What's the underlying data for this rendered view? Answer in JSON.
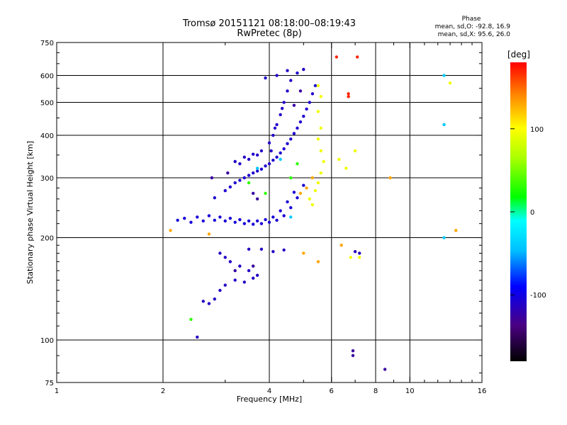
{
  "header": {
    "title_line1": "Tromsø 20151121 08:18:00–08:19:43",
    "title_line2": "RwPretec (8p)",
    "phase_label": "Phase",
    "stats_o": "mean, sd,O: -92.8, 16.9",
    "stats_x": "mean, sd,X:  95.6, 26.0"
  },
  "colorbar": {
    "label": "[deg]",
    "min": -180,
    "max": 180,
    "ticks": [
      100,
      0,
      -100
    ]
  },
  "chart_data": {
    "type": "scatter",
    "title": "Tromsø 20151121 08:18:00–08:19:43",
    "subtitle": "RwPretec (8p)",
    "xlabel": "Frequency [MHz]",
    "ylabel": "Stationary phase Virtual Height [km]",
    "x_scale": "log",
    "y_scale": "log",
    "xlim": [
      1,
      16
    ],
    "ylim": [
      75,
      750
    ],
    "x_ticks": [
      1,
      2,
      4,
      6,
      8,
      10,
      16
    ],
    "y_ticks": [
      75,
      100,
      200,
      300,
      400,
      500,
      600,
      750
    ],
    "x_grid": [
      2,
      4,
      6,
      8,
      10
    ],
    "y_grid": [
      100,
      200,
      300,
      400,
      500,
      600
    ],
    "color_by": "Phase [deg]",
    "series": [
      {
        "phase": -105,
        "points": [
          [
            2.4,
            222
          ],
          [
            2.6,
            224
          ],
          [
            2.8,
            225
          ],
          [
            3.0,
            224
          ],
          [
            3.2,
            222
          ],
          [
            3.4,
            220
          ],
          [
            3.6,
            219
          ],
          [
            3.8,
            220
          ],
          [
            4.0,
            222
          ],
          [
            4.2,
            225
          ],
          [
            4.4,
            232
          ],
          [
            4.6,
            245
          ],
          [
            4.8,
            262
          ],
          [
            5.0,
            285
          ],
          [
            2.5,
            230
          ],
          [
            2.7,
            232
          ],
          [
            2.9,
            230
          ],
          [
            3.1,
            228
          ],
          [
            3.3,
            226
          ],
          [
            3.5,
            224
          ],
          [
            3.7,
            224
          ],
          [
            3.9,
            226
          ],
          [
            4.1,
            230
          ],
          [
            4.3,
            240
          ],
          [
            4.5,
            255
          ],
          [
            4.7,
            272
          ],
          [
            2.2,
            225
          ],
          [
            2.3,
            228
          ]
        ]
      },
      {
        "phase": -108,
        "points": [
          [
            2.8,
            262
          ],
          [
            3.0,
            275
          ],
          [
            3.2,
            290
          ],
          [
            3.4,
            300
          ],
          [
            3.6,
            310
          ],
          [
            3.8,
            318
          ],
          [
            4.0,
            330
          ],
          [
            4.2,
            345
          ],
          [
            4.4,
            365
          ],
          [
            4.6,
            390
          ],
          [
            4.8,
            420
          ],
          [
            5.0,
            455
          ],
          [
            5.2,
            500
          ],
          [
            5.4,
            560
          ],
          [
            3.1,
            282
          ],
          [
            3.3,
            295
          ],
          [
            3.5,
            305
          ],
          [
            3.7,
            314
          ],
          [
            3.9,
            325
          ],
          [
            4.1,
            338
          ],
          [
            4.3,
            355
          ],
          [
            4.5,
            378
          ],
          [
            4.7,
            405
          ],
          [
            4.9,
            438
          ],
          [
            5.1,
            478
          ],
          [
            5.3,
            530
          ]
        ]
      },
      {
        "phase": -110,
        "points": [
          [
            3.2,
            335
          ],
          [
            3.4,
            345
          ],
          [
            3.6,
            352
          ],
          [
            3.8,
            360
          ],
          [
            4.0,
            380
          ],
          [
            4.1,
            400
          ],
          [
            4.2,
            430
          ],
          [
            4.3,
            460
          ],
          [
            4.4,
            500
          ],
          [
            4.5,
            540
          ],
          [
            4.6,
            580
          ],
          [
            4.8,
            610
          ],
          [
            5.0,
            625
          ],
          [
            3.9,
            590
          ],
          [
            4.2,
            600
          ],
          [
            4.5,
            620
          ],
          [
            3.3,
            330
          ],
          [
            3.5,
            340
          ],
          [
            3.7,
            350
          ],
          [
            4.05,
            360
          ],
          [
            4.15,
            420
          ],
          [
            4.35,
            480
          ]
        ]
      },
      {
        "phase": -112,
        "points": [
          [
            2.9,
            180
          ],
          [
            3.0,
            175
          ],
          [
            3.1,
            170
          ],
          [
            3.3,
            165
          ],
          [
            3.5,
            160
          ],
          [
            3.7,
            155
          ],
          [
            3.5,
            185
          ],
          [
            3.8,
            185
          ],
          [
            4.1,
            182
          ],
          [
            4.4,
            184
          ],
          [
            2.6,
            130
          ],
          [
            2.7,
            128
          ],
          [
            2.8,
            132
          ],
          [
            2.9,
            140
          ],
          [
            3.0,
            145
          ],
          [
            3.2,
            150
          ],
          [
            3.4,
            148
          ],
          [
            3.6,
            152
          ],
          [
            7.0,
            182
          ],
          [
            7.2,
            180
          ],
          [
            2.5,
            102
          ]
        ]
      },
      {
        "phase": -125,
        "points": [
          [
            2.75,
            300
          ],
          [
            3.05,
            310
          ],
          [
            3.6,
            270
          ],
          [
            3.7,
            260
          ],
          [
            4.7,
            490
          ],
          [
            4.9,
            540
          ],
          [
            3.2,
            160
          ],
          [
            3.6,
            165
          ],
          [
            8.5,
            82
          ],
          [
            6.9,
            90
          ],
          [
            6.9,
            93
          ]
        ]
      },
      {
        "phase": 95,
        "points": [
          [
            5.2,
            260
          ],
          [
            5.4,
            275
          ],
          [
            5.5,
            290
          ],
          [
            5.6,
            310
          ],
          [
            5.7,
            335
          ],
          [
            5.6,
            360
          ],
          [
            5.5,
            390
          ],
          [
            5.6,
            420
          ],
          [
            5.5,
            470
          ],
          [
            5.6,
            520
          ],
          [
            5.5,
            560
          ],
          [
            5.3,
            250
          ],
          [
            6.3,
            340
          ],
          [
            6.6,
            320
          ],
          [
            7.0,
            360
          ],
          [
            6.8,
            175
          ],
          [
            7.2,
            175
          ],
          [
            13.0,
            570
          ]
        ]
      },
      {
        "phase": 130,
        "points": [
          [
            4.9,
            270
          ],
          [
            5.1,
            280
          ],
          [
            5.3,
            300
          ],
          [
            5.0,
            180
          ],
          [
            5.5,
            170
          ],
          [
            6.4,
            190
          ],
          [
            2.1,
            210
          ],
          [
            2.7,
            205
          ],
          [
            8.8,
            300
          ],
          [
            13.5,
            210
          ]
        ]
      },
      {
        "phase": 30,
        "points": [
          [
            4.6,
            300
          ],
          [
            4.8,
            330
          ],
          [
            3.9,
            270
          ],
          [
            3.5,
            290
          ],
          [
            2.4,
            115
          ]
        ]
      },
      {
        "phase": -40,
        "points": [
          [
            4.6,
            230
          ],
          [
            4.3,
            340
          ],
          [
            3.7,
            320
          ],
          [
            12.5,
            200
          ],
          [
            12.5,
            430
          ],
          [
            12.5,
            600
          ]
        ]
      },
      {
        "phase": 170,
        "points": [
          [
            6.2,
            680
          ],
          [
            6.7,
            520
          ],
          [
            6.7,
            530
          ],
          [
            7.1,
            680
          ]
        ]
      }
    ]
  }
}
